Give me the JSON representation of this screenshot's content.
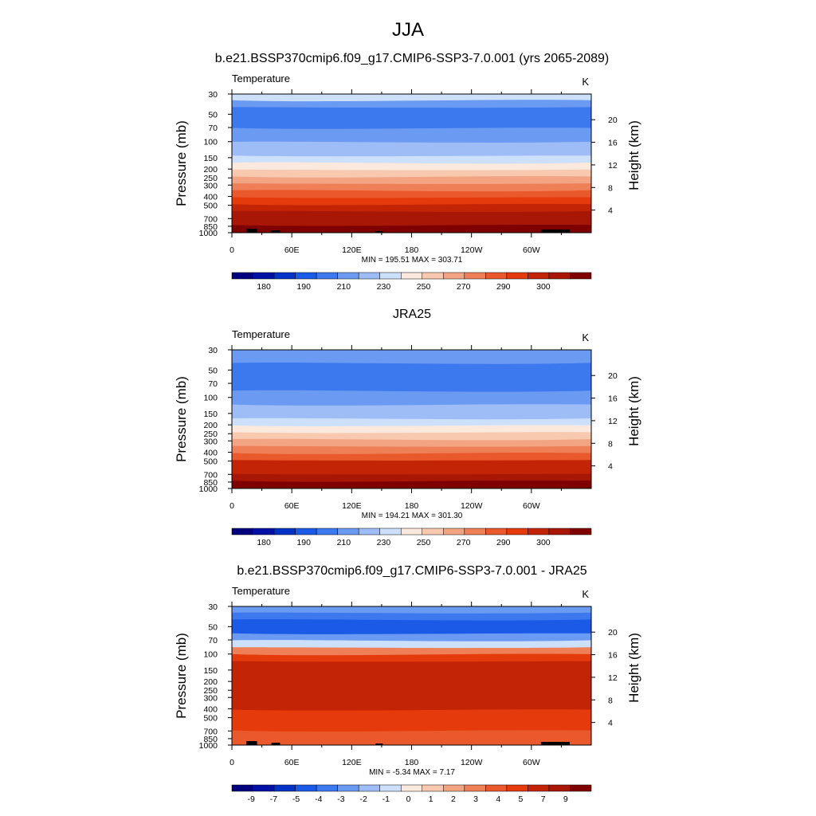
{
  "figure": {
    "title": "JJA",
    "colors": [
      "#00007f",
      "#0010a4",
      "#0032c8",
      "#1a5ae6",
      "#3c78ee",
      "#6b9af2",
      "#9ebdf6",
      "#cde0fb",
      "#fbe9dd",
      "#f8c8af",
      "#f3a482",
      "#ee7f56",
      "#e9592c",
      "#e53a0c",
      "#c42406",
      "#a81705",
      "#7f0000"
    ]
  },
  "chart_data": [
    {
      "type": "heatmap",
      "title": "b.e21.BSSP370cmip6.f09_g17.CMIP6-SSP3-7.0.001 (yrs 2065-2089)",
      "left_label": "Temperature",
      "units": "K",
      "ylabel": "Pressure (mb)",
      "ylabel_right": "Height (km)",
      "x_ticks": [
        "0",
        "60E",
        "120E",
        "180",
        "120W",
        "60W"
      ],
      "x_tick_lons": [
        0,
        60,
        120,
        180,
        240,
        300
      ],
      "xlim": [
        0,
        360
      ],
      "y_ticks": [
        30,
        50,
        70,
        100,
        150,
        200,
        250,
        300,
        400,
        500,
        700,
        850,
        1000
      ],
      "y_scale": "log-pressure",
      "ylim": [
        30,
        1000
      ],
      "height_ticks": [
        4,
        8,
        12,
        16,
        20
      ],
      "stats": "MIN = 195.51  MAX = 303.71",
      "colorbar_labels": [
        "180",
        "190",
        "210",
        "230",
        "250",
        "270",
        "290",
        "300"
      ],
      "levels": [
        230,
        218,
        210,
        209,
        212,
        215,
        218,
        222,
        226,
        232,
        238,
        244,
        252,
        262,
        270,
        278,
        285,
        290,
        294,
        298
      ],
      "topography": true
    },
    {
      "type": "heatmap",
      "title": "JRA25",
      "left_label": "Temperature",
      "units": "K",
      "ylabel": "Pressure (mb)",
      "ylabel_right": "Height (km)",
      "x_ticks": [
        "0",
        "60E",
        "120E",
        "180",
        "120W",
        "60W"
      ],
      "x_tick_lons": [
        0,
        60,
        120,
        180,
        240,
        300
      ],
      "xlim": [
        0,
        360
      ],
      "y_ticks": [
        30,
        50,
        70,
        100,
        150,
        200,
        250,
        300,
        400,
        500,
        700,
        850,
        1000
      ],
      "y_scale": "log-pressure",
      "ylim": [
        30,
        1000
      ],
      "height_ticks": [
        4,
        8,
        12,
        16,
        20
      ],
      "stats": "MIN = 194.21  MAX = 301.30",
      "colorbar_labels": [
        "180",
        "190",
        "210",
        "230",
        "250",
        "270",
        "290",
        "300"
      ],
      "levels": [
        218,
        214,
        212,
        211,
        210,
        211,
        213,
        216,
        220,
        226,
        232,
        240,
        248,
        256,
        264,
        272,
        280,
        286,
        291,
        295
      ],
      "topography": false
    },
    {
      "type": "heatmap",
      "title": "b.e21.BSSP370cmip6.f09_g17.CMIP6-SSP3-7.0.001 - JRA25",
      "left_label": "Temperature",
      "units": "K",
      "ylabel": "Pressure (mb)",
      "ylabel_right": "Height (km)",
      "x_ticks": [
        "0",
        "60E",
        "120E",
        "180",
        "120W",
        "60W"
      ],
      "x_tick_lons": [
        0,
        60,
        120,
        180,
        240,
        300
      ],
      "xlim": [
        0,
        360
      ],
      "y_ticks": [
        30,
        50,
        70,
        100,
        150,
        200,
        250,
        300,
        400,
        500,
        700,
        850,
        1000
      ],
      "y_scale": "log-pressure",
      "ylim": [
        30,
        1000
      ],
      "height_ticks": [
        4,
        8,
        12,
        16,
        20
      ],
      "stats": "MIN =  -5.34  MAX =   7.17",
      "colorbar_labels": [
        "-9",
        "-7",
        "-5",
        "-4",
        "-3",
        "-2",
        "-1",
        "0",
        "1",
        "2",
        "3",
        "4",
        "5",
        "7",
        "9"
      ],
      "levels": [
        -3,
        -4,
        -4.5,
        -5,
        -3,
        -1,
        2,
        4,
        5,
        5,
        5,
        5,
        5,
        5,
        5,
        4.5,
        4,
        4,
        3.5,
        3
      ],
      "topography": true
    }
  ]
}
